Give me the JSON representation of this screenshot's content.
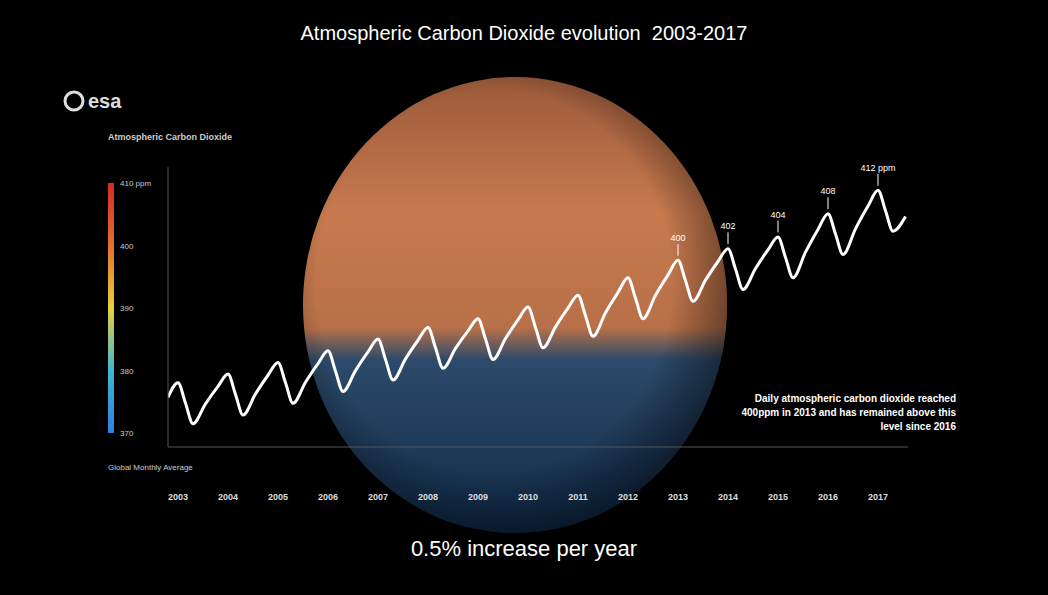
{
  "chart_data": {
    "type": "line",
    "title": "Atmospheric Carbon Dioxide evolution  2003-2017",
    "subtitle": "0.5% increase per year",
    "logo": "esa",
    "color": "#ffffff",
    "grid": false,
    "tick_labels": "x",
    "x": [
      2002.8,
      2003,
      2003.15,
      2003.3,
      2003.55,
      2003.8,
      2004,
      2004.15,
      2004.3,
      2004.55,
      2004.8,
      2005,
      2005.15,
      2005.3,
      2005.55,
      2005.8,
      2006,
      2006.15,
      2006.3,
      2006.55,
      2006.8,
      2007,
      2007.15,
      2007.3,
      2007.55,
      2007.8,
      2008,
      2008.15,
      2008.3,
      2008.55,
      2008.8,
      2009,
      2009.15,
      2009.3,
      2009.55,
      2009.8,
      2010,
      2010.15,
      2010.3,
      2010.55,
      2010.8,
      2011,
      2011.15,
      2011.3,
      2011.55,
      2011.8,
      2012,
      2012.15,
      2012.3,
      2012.55,
      2012.8,
      2013,
      2013.15,
      2013.3,
      2013.55,
      2013.8,
      2014,
      2014.15,
      2014.3,
      2014.55,
      2014.8,
      2015,
      2015.15,
      2015.3,
      2015.55,
      2015.8,
      2016,
      2016.15,
      2016.3,
      2016.55,
      2016.8,
      2017,
      2017.15,
      2017.3,
      2017.55
    ],
    "values": [
      376.5,
      379,
      375.5,
      372,
      375.4,
      378.4,
      380.5,
      377,
      373.5,
      377.1,
      380.3,
      382.5,
      379,
      375.5,
      379.1,
      382.3,
      384.5,
      381,
      377.5,
      381.1,
      384.3,
      386.5,
      383,
      379.5,
      383.1,
      386.3,
      388.5,
      385,
      381.5,
      384.9,
      387.9,
      390,
      386.5,
      383,
      386.6,
      389.8,
      392,
      388.5,
      385,
      388.6,
      391.8,
      394,
      390.5,
      387,
      391,
      394.5,
      397,
      393.5,
      390,
      394,
      397.5,
      400,
      396.5,
      393,
      396.6,
      399.8,
      402,
      398.5,
      395,
      398.6,
      401.8,
      404,
      400.5,
      397,
      401.4,
      405.3,
      408,
      404.5,
      401,
      405.4,
      409.3,
      412,
      408.5,
      405,
      407.5
    ],
    "xlim": [
      2002.8,
      2017.6
    ],
    "xticks": [
      2003,
      2004,
      2005,
      2006,
      2007,
      2008,
      2009,
      2010,
      2011,
      2012,
      2013,
      2014,
      2015,
      2016,
      2017
    ],
    "ylim": [
      368,
      416
    ],
    "annotations": [
      {
        "x": 2013,
        "y": 400,
        "label": "400"
      },
      {
        "x": 2014,
        "y": 402,
        "label": "402"
      },
      {
        "x": 2015,
        "y": 404,
        "label": "404"
      },
      {
        "x": 2016,
        "y": 408,
        "label": "408"
      },
      {
        "x": 2017,
        "y": 412,
        "label": "412 ppm"
      }
    ],
    "callout": "Daily atmospheric carbon dioxide reached 400ppm in 2013 and has remained above this level since 2016",
    "colorbar": {
      "title": "Atmospheric Carbon Dioxide",
      "label": "Global Monthly Average",
      "range": [
        370,
        410
      ],
      "ticks": [
        {
          "value": 410,
          "label": "410 ppm"
        },
        400,
        390,
        380,
        370
      ],
      "colors": [
        "#2f7fe0",
        "#3fb7d0",
        "#e8d040",
        "#e07030",
        "#d42a20"
      ]
    }
  }
}
